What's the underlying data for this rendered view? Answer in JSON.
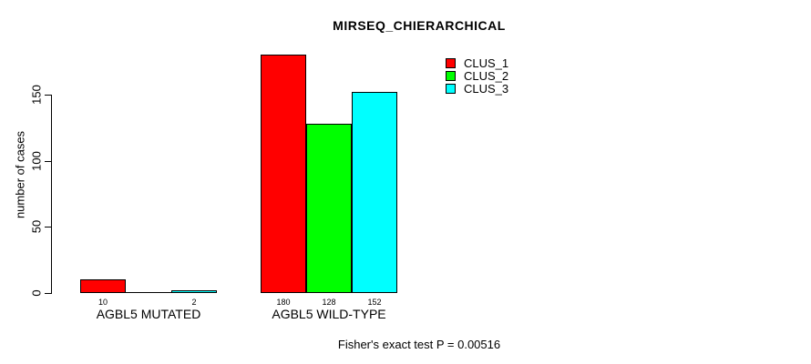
{
  "title": "MIRSEQ_CHIERARCHICAL",
  "footer": "Fisher's exact test P = 0.00516",
  "colors": {
    "background": "#ffffff",
    "axis": "#000000",
    "text": "#000000",
    "bar_border": "#000000",
    "clus_1": "#ff0000",
    "clus_2": "#00ff00",
    "clus_3": "#00ffff"
  },
  "chart_data": {
    "type": "bar",
    "title": "MIRSEQ_CHIERARCHICAL",
    "xlabel": "",
    "ylabel": "number of cases",
    "ylim": [
      0,
      180
    ],
    "yticks": [
      0,
      50,
      100,
      150
    ],
    "grid": false,
    "legend_position": "inside-top-right",
    "categories": [
      "AGBL5 MUTATED",
      "AGBL5 WILD-TYPE"
    ],
    "series": [
      {
        "name": "CLUS_1",
        "color": "#ff0000",
        "values": [
          10,
          180
        ]
      },
      {
        "name": "CLUS_2",
        "color": "#00ff00",
        "values": [
          0,
          128
        ]
      },
      {
        "name": "CLUS_3",
        "color": "#00ffff",
        "values": [
          2,
          152
        ]
      }
    ],
    "bar_value_labels": [
      [
        "10",
        "",
        "2"
      ],
      [
        "180",
        "128",
        "152"
      ]
    ],
    "annotation": "Fisher's exact test P = 0.00516"
  }
}
